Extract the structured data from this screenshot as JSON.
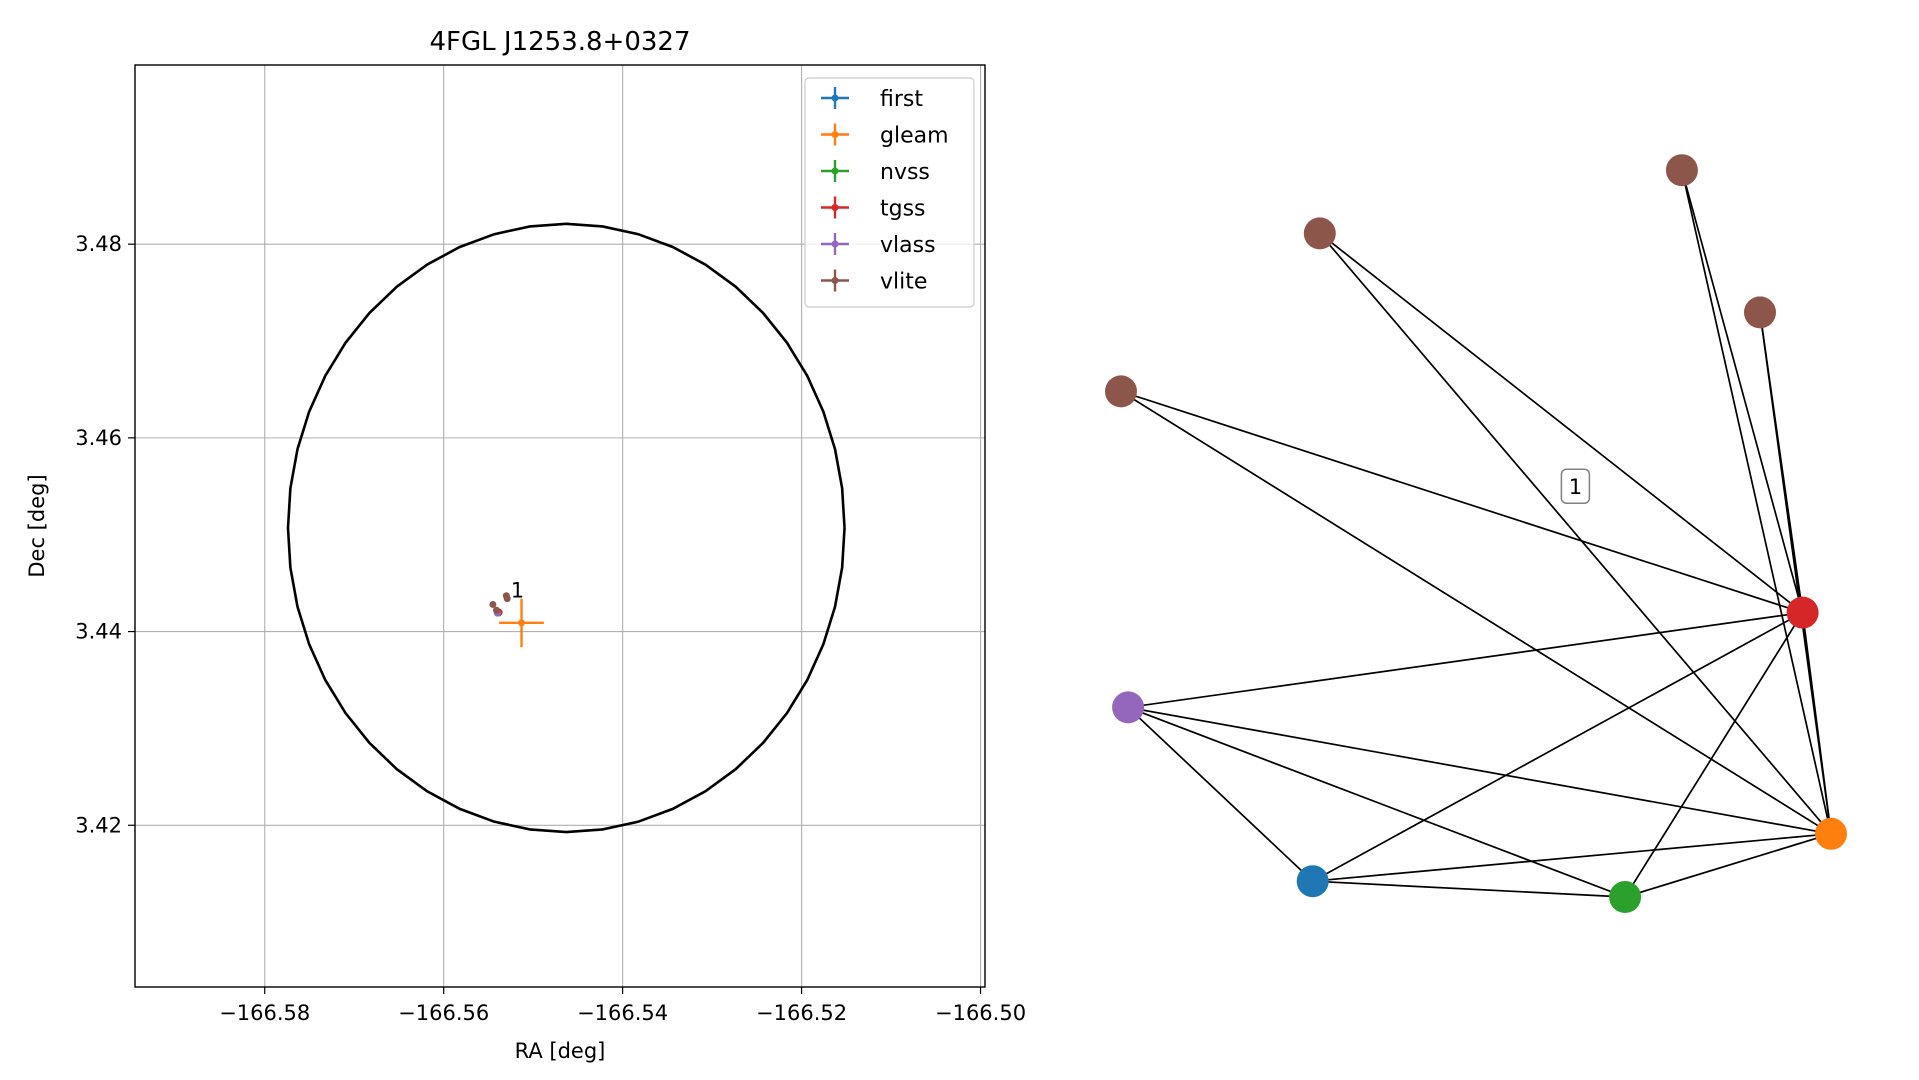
{
  "chart_data": [
    {
      "type": "scatter",
      "title": "4FGL J1253.8+0327",
      "xlabel": "RA [deg]",
      "ylabel": "Dec [deg]",
      "xlim": [
        -166.5945,
        -166.4995
      ],
      "ylim": [
        3.4033,
        3.4985
      ],
      "xticks": [
        -166.58,
        -166.56,
        -166.54,
        -166.52,
        -166.5
      ],
      "xtick_labels": [
        "−166.58",
        "−166.56",
        "−166.54",
        "−166.52",
        "−166.50"
      ],
      "yticks": [
        3.42,
        3.44,
        3.46,
        3.48
      ],
      "ytick_labels": [
        "3.42",
        "3.44",
        "3.46",
        "3.48"
      ],
      "grid": true,
      "legend_position": "top-right",
      "error_ellipse": {
        "center": [
          -166.5463,
          3.4507
        ],
        "semi_axis_ra": 0.0311,
        "semi_axis_dec": 0.0314,
        "color": "#000000"
      },
      "series": [
        {
          "name": "first",
          "color": "#1f77b4",
          "points": [
            {
              "ra": -166.5539,
              "dec": 3.442,
              "ra_err": 0.0002,
              "dec_err": 0.0002
            }
          ]
        },
        {
          "name": "gleam",
          "color": "#ff7f0e",
          "points": [
            {
              "ra": -166.5513,
              "dec": 3.4409,
              "ra_err": 0.0025,
              "dec_err": 0.0025
            }
          ]
        },
        {
          "name": "nvss",
          "color": "#2ca02c",
          "points": [
            {
              "ra": -166.5539,
              "dec": 3.4419,
              "ra_err": 0.0003,
              "dec_err": 0.0003
            }
          ]
        },
        {
          "name": "tgss",
          "color": "#d62728",
          "points": [
            {
              "ra": -166.5538,
              "dec": 3.442,
              "ra_err": 0.0003,
              "dec_err": 0.0003
            }
          ]
        },
        {
          "name": "vlass",
          "color": "#9467bd",
          "points": [
            {
              "ra": -166.554,
              "dec": 3.4419,
              "ra_err": 0.0001,
              "dec_err": 0.0001
            }
          ]
        },
        {
          "name": "vlite",
          "color": "#8c564b",
          "points": [
            {
              "ra": -166.553,
              "dec": 3.4437,
              "ra_err": 0.0003,
              "dec_err": 0.0003
            },
            {
              "ra": -166.5545,
              "dec": 3.4428,
              "ra_err": 0.0003,
              "dec_err": 0.0003
            },
            {
              "ra": -166.5541,
              "dec": 3.4422,
              "ra_err": 0.0003,
              "dec_err": 0.0003
            },
            {
              "ra": -166.5529,
              "dec": 3.4434,
              "ra_err": 0.0003,
              "dec_err": 0.0003
            }
          ]
        }
      ],
      "annotations": [
        {
          "text": "1",
          "ra": -166.5525,
          "dec": 3.4435
        }
      ]
    },
    {
      "type": "network",
      "nodes": [
        {
          "id": "vlite_1",
          "color": "#8c564b",
          "layout": [
            0.79,
            0.92
          ]
        },
        {
          "id": "vlite_2",
          "color": "#8c564b",
          "layout": [
            0.28,
            0.84
          ]
        },
        {
          "id": "vlite_3",
          "color": "#8c564b",
          "layout": [
            0.9,
            0.74
          ]
        },
        {
          "id": "vlite_4",
          "color": "#8c564b",
          "layout": [
            0.0,
            0.64
          ]
        },
        {
          "id": "tgss",
          "color": "#d62728",
          "layout": [
            0.96,
            0.36
          ]
        },
        {
          "id": "vlass",
          "color": "#9467bd",
          "layout": [
            0.01,
            0.24
          ]
        },
        {
          "id": "gleam",
          "color": "#ff7f0e",
          "layout": [
            1.0,
            0.08
          ]
        },
        {
          "id": "first",
          "color": "#1f77b4",
          "layout": [
            0.27,
            0.02
          ]
        },
        {
          "id": "nvss",
          "color": "#2ca02c",
          "layout": [
            0.71,
            0.0
          ]
        }
      ],
      "edges": [
        [
          "vlite_1",
          "tgss"
        ],
        [
          "vlite_1",
          "gleam"
        ],
        [
          "vlite_2",
          "tgss"
        ],
        [
          "vlite_2",
          "gleam"
        ],
        [
          "vlite_3",
          "tgss"
        ],
        [
          "vlite_3",
          "gleam"
        ],
        [
          "vlite_4",
          "tgss"
        ],
        [
          "vlite_4",
          "gleam"
        ],
        [
          "tgss",
          "vlass"
        ],
        [
          "tgss",
          "gleam"
        ],
        [
          "tgss",
          "first"
        ],
        [
          "tgss",
          "nvss"
        ],
        [
          "vlass",
          "gleam"
        ],
        [
          "vlass",
          "first"
        ],
        [
          "vlass",
          "nvss"
        ],
        [
          "first",
          "gleam"
        ],
        [
          "first",
          "nvss"
        ],
        [
          "nvss",
          "gleam"
        ]
      ],
      "label": {
        "text": "1",
        "layout": [
          0.64,
          0.52
        ]
      }
    }
  ]
}
